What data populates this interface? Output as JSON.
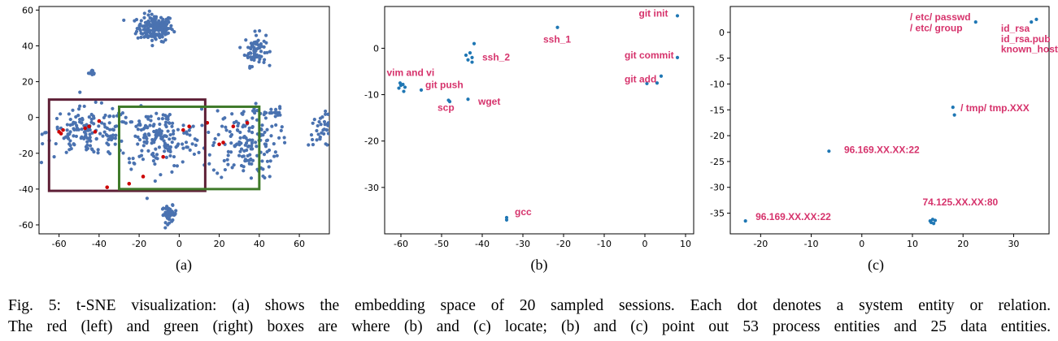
{
  "chart_data": [
    {
      "type": "scatter",
      "panel_label": "(a)",
      "xlim": [
        -70,
        75
      ],
      "ylim": [
        -65,
        62
      ],
      "xticks": [
        -60,
        -40,
        -20,
        0,
        20,
        40,
        60
      ],
      "yticks": [
        -60,
        -40,
        -20,
        0,
        20,
        40,
        60
      ],
      "point_color": "#4a72b0",
      "highlight_color": "#cc0000",
      "clusters": [
        {
          "cx": -12,
          "cy": 50,
          "sx": 6,
          "sy": 5,
          "n": 180
        },
        {
          "cx": 38,
          "cy": 38,
          "sx": 3.5,
          "sy": 6,
          "n": 70
        },
        {
          "cx": -43,
          "cy": 25,
          "sx": 1.5,
          "sy": 1,
          "n": 10
        },
        {
          "cx": -5,
          "cy": -54,
          "sx": 2.5,
          "sy": 3,
          "n": 45
        },
        {
          "cx": 72,
          "cy": -7,
          "sx": 5,
          "sy": 6,
          "n": 45
        },
        {
          "cx": -45,
          "cy": -8,
          "sx": 14,
          "sy": 9,
          "n": 150
        },
        {
          "cx": -10,
          "cy": -12,
          "sx": 14,
          "sy": 11,
          "n": 170
        },
        {
          "cx": 33,
          "cy": -15,
          "sx": 11,
          "sy": 13,
          "n": 150
        },
        {
          "cx": 45,
          "cy": 3,
          "sx": 5,
          "sy": 2,
          "n": 25
        }
      ],
      "highlights": [
        [
          -60,
          -8
        ],
        [
          -58,
          -7
        ],
        [
          -59,
          -9
        ],
        [
          -47,
          -6
        ],
        [
          -45,
          -5
        ],
        [
          -42,
          -8
        ],
        [
          -40,
          -2
        ],
        [
          -36,
          -39
        ],
        [
          -25,
          -37
        ],
        [
          -18,
          -33
        ],
        [
          -8,
          -22
        ],
        [
          2,
          -7
        ],
        [
          5,
          -5
        ],
        [
          14,
          -3
        ],
        [
          20,
          -15
        ],
        [
          22,
          -14
        ],
        [
          27,
          -5
        ],
        [
          34,
          -3
        ]
      ],
      "boxes": [
        {
          "name": "red-box",
          "x0": -65,
          "x1": 13,
          "y0": -41,
          "y1": 10,
          "color": "#5e1f36"
        },
        {
          "name": "green-box",
          "x0": -30,
          "x1": 40,
          "y0": -40,
          "y1": 6,
          "color": "#3f7a2a"
        }
      ]
    },
    {
      "type": "scatter",
      "panel_label": "(b)",
      "xlim": [
        -64,
        12
      ],
      "ylim": [
        -40,
        9
      ],
      "xticks": [
        -60,
        -50,
        -40,
        -30,
        -20,
        -10,
        0,
        10
      ],
      "yticks": [
        -30,
        -20,
        -10,
        0
      ],
      "point_color": "#1f77b4",
      "points": [
        [
          8,
          7
        ],
        [
          -21.5,
          4.5
        ],
        [
          -42,
          1
        ],
        [
          -43,
          -1
        ],
        [
          -42.5,
          -2
        ],
        [
          -43.5,
          -2.5
        ],
        [
          -42.5,
          -3
        ],
        [
          -44,
          -1.5
        ],
        [
          8,
          -2
        ],
        [
          -60,
          -8
        ],
        [
          -59.5,
          -7.8
        ],
        [
          -59,
          -8.4
        ],
        [
          -60.5,
          -8.6
        ],
        [
          -59.3,
          -9.3
        ],
        [
          -60.2,
          -7.5
        ],
        [
          -55,
          -9
        ],
        [
          -48,
          -11.5
        ],
        [
          -48.3,
          -11.2
        ],
        [
          -43.5,
          -11
        ],
        [
          0.5,
          -7.6
        ],
        [
          3,
          -7.5
        ],
        [
          4,
          -6
        ],
        [
          -34,
          -36.5
        ],
        [
          -34,
          -37
        ]
      ],
      "annotations": [
        {
          "text": "git init",
          "x": -1.5,
          "y": 6.8
        },
        {
          "text": "ssh_1",
          "x": -25,
          "y": 1.2
        },
        {
          "text": "ssh_2",
          "x": -40,
          "y": -2.6
        },
        {
          "text": "git commit",
          "x": -5,
          "y": -2.2
        },
        {
          "text": "vim and vi",
          "x": -63.5,
          "y": -6
        },
        {
          "text": "git add",
          "x": -5,
          "y": -7.4
        },
        {
          "text": "git push",
          "x": -54,
          "y": -8.6
        },
        {
          "text": "scp",
          "x": -51,
          "y": -13.5
        },
        {
          "text": "wget",
          "x": -41,
          "y": -12.2
        },
        {
          "text": "gcc",
          "x": -32,
          "y": -36
        }
      ]
    },
    {
      "type": "scatter",
      "panel_label": "(c)",
      "xlim": [
        -26,
        37
      ],
      "ylim": [
        -39,
        5
      ],
      "xticks": [
        -20,
        -10,
        0,
        10,
        20,
        30
      ],
      "yticks": [
        -35,
        -30,
        -25,
        -20,
        -15,
        -10,
        -5,
        0
      ],
      "point_color": "#1f77b4",
      "points": [
        [
          22.5,
          2
        ],
        [
          33.5,
          2
        ],
        [
          34.5,
          2.5
        ],
        [
          18,
          -14.5
        ],
        [
          18.3,
          -16
        ],
        [
          -6.5,
          -23
        ],
        [
          13.5,
          -36.5
        ],
        [
          14,
          -36.2
        ],
        [
          14.2,
          -37
        ],
        [
          13.7,
          -36.8
        ],
        [
          14.5,
          -36.4
        ],
        [
          -23,
          -36.5
        ]
      ],
      "annotations": [
        {
          "text": "/ etc/ passwd",
          "x": 9.5,
          "y": 2.3
        },
        {
          "text": "/ etc/ group",
          "x": 9.5,
          "y": 0.2
        },
        {
          "text": "id_rsa",
          "x": 27.5,
          "y": 0.1
        },
        {
          "text": "id_rsa.pub",
          "x": 27.5,
          "y": -1.9
        },
        {
          "text": "known_hosts",
          "x": 27.5,
          "y": -3.9
        },
        {
          "text": "/ tmp/ tmp.XXX",
          "x": 19.5,
          "y": -15.3
        },
        {
          "text": "96.169.XX.XX:22",
          "x": -3.5,
          "y": -23.4
        },
        {
          "text": "74.125.XX.XX:80",
          "x": 12,
          "y": -33.5
        },
        {
          "text": "96.169.XX.XX:22",
          "x": -21,
          "y": -36.3
        }
      ]
    }
  ],
  "caption": {
    "line1": "Fig. 5: t-SNE visualization: (a) shows the embedding space of 20 sampled sessions. Each dot denotes a system entity or relation.",
    "line2": "The red (left) and green (right) boxes are where (b) and (c) locate; (b) and (c) point out 53 process entities and 25 data entities."
  }
}
